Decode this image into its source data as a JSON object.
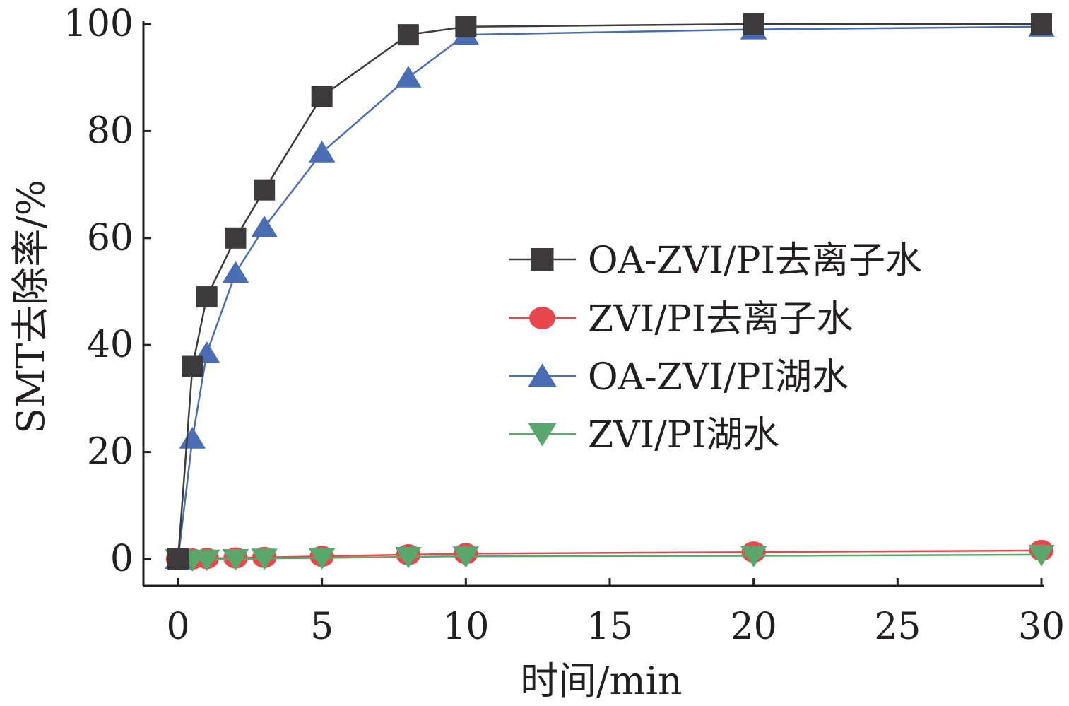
{
  "chart_data": {
    "type": "line",
    "xlabel": "时间/min",
    "ylabel": "SMT去除率/%",
    "xlim": [
      0,
      30
    ],
    "ylim": [
      0,
      100
    ],
    "xticks": [
      "0",
      "5",
      "10",
      "15",
      "20",
      "25",
      "30"
    ],
    "yticks": [
      "0",
      "20",
      "40",
      "60",
      "80",
      "100"
    ],
    "grid": false,
    "legend_position": "center-right",
    "series": [
      {
        "name": "OA-ZVI/PI去离子水",
        "marker": "square",
        "color": "#3d3a3b",
        "x": [
          0,
          0.5,
          1,
          2,
          3,
          5,
          8,
          10,
          20,
          30
        ],
        "y": [
          0,
          36,
          49,
          60,
          69,
          86.5,
          98,
          99.5,
          100,
          100
        ]
      },
      {
        "name": "ZVI/PI去离子水",
        "marker": "circle",
        "color": "#e8474c",
        "x": [
          0,
          0.5,
          1,
          2,
          3,
          5,
          8,
          10,
          20,
          30
        ],
        "y": [
          0,
          0,
          0.1,
          0.2,
          0.3,
          0.5,
          0.8,
          1,
          1.3,
          1.6
        ]
      },
      {
        "name": "OA-ZVI/PI湖水",
        "marker": "triangle-up",
        "color": "#4a6db3",
        "x": [
          0,
          0.5,
          1,
          2,
          3,
          5,
          8,
          10,
          20,
          30
        ],
        "y": [
          0,
          22.5,
          38.5,
          53.5,
          62,
          76,
          90,
          98,
          99,
          99.5
        ]
      },
      {
        "name": "ZVI/PI湖水",
        "marker": "triangle-down",
        "color": "#5aa76d",
        "x": [
          0,
          0.5,
          1,
          2,
          3,
          5,
          8,
          10,
          20,
          30
        ],
        "y": [
          0,
          -0.2,
          -0.1,
          0,
          0.1,
          0.2,
          0.4,
          0.5,
          0.6,
          0.8
        ]
      }
    ]
  }
}
